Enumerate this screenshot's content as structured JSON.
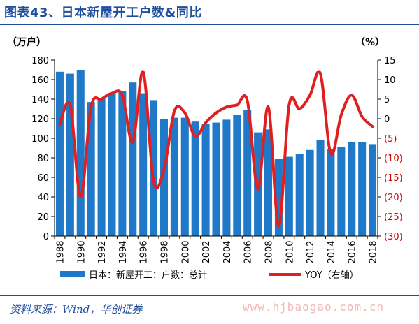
{
  "header": {
    "title": "图表43、日本新屋开工户数&同比"
  },
  "footer": {
    "source": "资料来源：Wind，华创证券",
    "watermark": "www.hjbaogao.com.cn"
  },
  "chart_data": {
    "type": "bar",
    "years": [
      1988,
      1989,
      1990,
      1991,
      1992,
      1993,
      1994,
      1995,
      1996,
      1997,
      1998,
      1999,
      2000,
      2001,
      2002,
      2003,
      2004,
      2005,
      2006,
      2007,
      2008,
      2009,
      2010,
      2011,
      2012,
      2013,
      2014,
      2015,
      2016,
      2017,
      2018
    ],
    "x_tick_labels": [
      "1988",
      "1990",
      "1992",
      "1994",
      "1996",
      "1998",
      "2000",
      "2002",
      "2004",
      "2006",
      "2008",
      "2010",
      "2012",
      "2014",
      "2016",
      "2018"
    ],
    "left_axis": {
      "unit_label": "（万户）",
      "ylim": [
        0,
        180
      ],
      "ticks": [
        "0",
        "20",
        "40",
        "60",
        "80",
        "100",
        "120",
        "140",
        "160",
        "180"
      ]
    },
    "right_axis": {
      "unit_label": "（%）",
      "ylim": [
        -30,
        15
      ],
      "ticks": [
        "15",
        "10",
        "5",
        "0",
        "(5)",
        "(10)",
        "(15)",
        "(20)",
        "(25)",
        "(30)"
      ]
    },
    "series": [
      {
        "name": "日本：新屋开工：户数：总计",
        "type": "bar",
        "axis": "left",
        "color": "#1f78c8",
        "values": [
          168,
          166,
          170,
          137,
          141,
          146,
          148,
          157,
          146,
          139,
          120,
          121,
          121,
          117,
          115,
          116,
          119,
          124,
          129,
          106,
          109,
          79,
          81,
          84,
          88,
          98,
          89,
          91,
          96,
          96,
          94
        ]
      },
      {
        "name": "YOY（右轴）",
        "type": "line",
        "axis": "right",
        "color": "#e02020",
        "values": [
          -1.5,
          3.5,
          -20,
          3,
          5,
          6.5,
          6,
          -6,
          12,
          -16,
          -13,
          2,
          1.5,
          -4.5,
          -1,
          1.5,
          3,
          3.5,
          4.5,
          -18,
          3,
          -27.5,
          3.5,
          2.5,
          6,
          11.5,
          -9,
          1,
          6,
          0.5,
          -2
        ]
      }
    ]
  }
}
